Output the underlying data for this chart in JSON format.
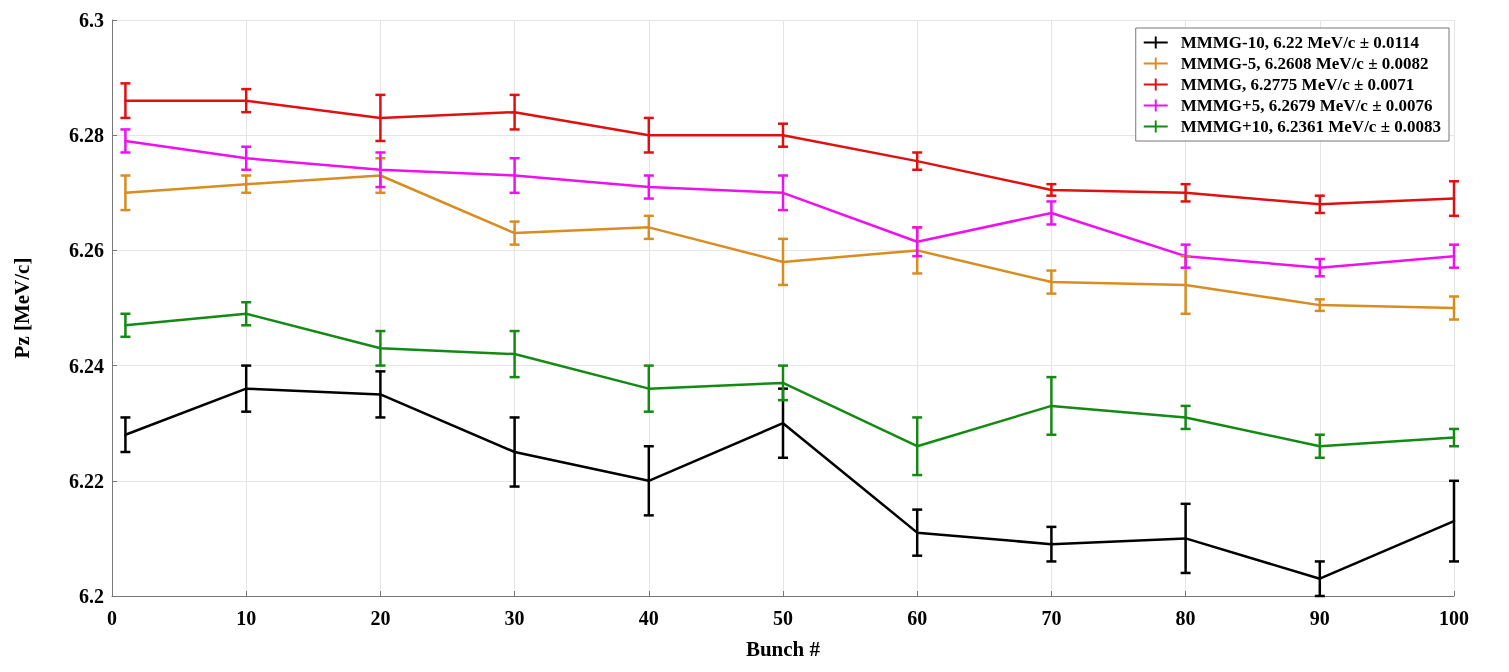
{
  "chart_data": {
    "type": "line",
    "xlabel": "Bunch #",
    "ylabel": "Pz [MeV/c]",
    "x": [
      1,
      10,
      20,
      30,
      40,
      50,
      60,
      70,
      80,
      90,
      100
    ],
    "xlim": [
      0,
      100
    ],
    "xticks": [
      0,
      10,
      20,
      30,
      40,
      50,
      60,
      70,
      80,
      90,
      100
    ],
    "ylim": [
      6.2,
      6.3
    ],
    "yticks": [
      6.2,
      6.22,
      6.24,
      6.26,
      6.28,
      6.3
    ],
    "grid": true,
    "legend": "top right",
    "marker": "none",
    "line_style": "solid",
    "series": [
      {
        "name": "MMMG-10, 6.22 MeV/c ± 0.0114",
        "color": "#000000",
        "values": [
          6.228,
          6.236,
          6.235,
          6.225,
          6.22,
          6.23,
          6.211,
          6.209,
          6.21,
          6.203,
          6.213
        ],
        "errors": [
          0.003,
          0.004,
          0.004,
          0.006,
          0.006,
          0.006,
          0.004,
          0.003,
          0.006,
          0.003,
          0.007
        ]
      },
      {
        "name": "MMMG-5, 6.2608 MeV/c ± 0.0082",
        "color": "#d98c1f",
        "values": [
          6.27,
          6.2715,
          6.273,
          6.263,
          6.264,
          6.258,
          6.26,
          6.2545,
          6.254,
          6.2505,
          6.25
        ],
        "errors": [
          0.003,
          0.0015,
          0.003,
          0.002,
          0.002,
          0.004,
          0.004,
          0.002,
          0.005,
          0.001,
          0.002
        ]
      },
      {
        "name": "MMMG, 6.2775 MeV/c ± 0.0071",
        "color": "#e01010",
        "values": [
          6.286,
          6.286,
          6.283,
          6.284,
          6.28,
          6.28,
          6.2755,
          6.2705,
          6.27,
          6.268,
          6.269
        ],
        "errors": [
          0.003,
          0.002,
          0.004,
          0.003,
          0.003,
          0.002,
          0.0015,
          0.001,
          0.0015,
          0.0015,
          0.003
        ]
      },
      {
        "name": "MMMG+5, 6.2679 MeV/c ± 0.0076",
        "color": "#ee10ee",
        "values": [
          6.279,
          6.276,
          6.274,
          6.273,
          6.271,
          6.27,
          6.2615,
          6.2665,
          6.259,
          6.257,
          6.259
        ],
        "errors": [
          0.002,
          0.002,
          0.003,
          0.003,
          0.002,
          0.003,
          0.0025,
          0.002,
          0.002,
          0.0015,
          0.002
        ]
      },
      {
        "name": "MMMG+10, 6.2361 MeV/c ± 0.0083",
        "color": "#138a13",
        "values": [
          6.247,
          6.249,
          6.243,
          6.242,
          6.236,
          6.237,
          6.226,
          6.233,
          6.231,
          6.226,
          6.2275
        ],
        "errors": [
          0.002,
          0.002,
          0.003,
          0.004,
          0.004,
          0.003,
          0.005,
          0.005,
          0.002,
          0.002,
          0.0015
        ]
      }
    ]
  }
}
